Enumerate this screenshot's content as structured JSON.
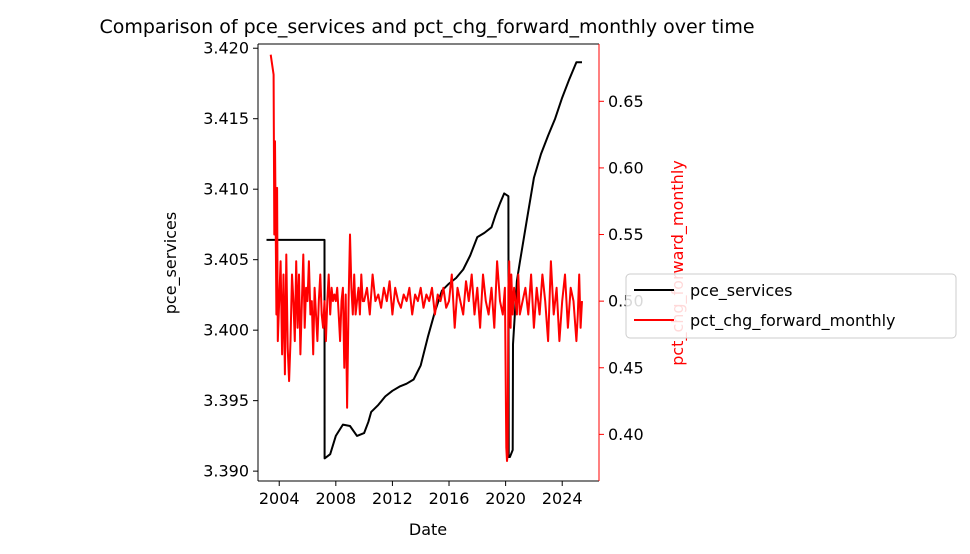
{
  "chart_data": {
    "type": "line",
    "title": "Comparison of pce_services and pct_chg_forward_monthly over time",
    "xlabel": "Date",
    "ylabel_left": "pce_services",
    "ylabel_right": "pct_chg_forward_monthly",
    "x_range": [
      "2002.5",
      "2026.6"
    ],
    "x_ticks": [
      "2004",
      "2008",
      "2012",
      "2016",
      "2020",
      "2024"
    ],
    "ylim_left": [
      3.3893,
      3.4203
    ],
    "yticks_left": [
      "3.390",
      "3.395",
      "3.400",
      "3.405",
      "3.410",
      "3.415",
      "3.420"
    ],
    "ylim_right": [
      0.365,
      0.693
    ],
    "yticks_right": [
      "0.40",
      "0.45",
      "0.50",
      "0.55",
      "0.60",
      "0.65"
    ],
    "grid": false,
    "legend_position": "center-right, outside plot",
    "colors": {
      "pce_services": "#000000",
      "pct_chg_forward_monthly": "#ff0000",
      "right_axis": "#ff0000"
    },
    "series": [
      {
        "name": "pce_services",
        "axis": "left",
        "x": [
          2003.1,
          2007.2,
          2007.21,
          2007.6,
          2008.0,
          2008.5,
          2009.0,
          2009.5,
          2010.0,
          2010.3,
          2010.5,
          2011.0,
          2011.5,
          2012.0,
          2012.5,
          2013.0,
          2013.5,
          2014.0,
          2014.5,
          2015.0,
          2015.5,
          2016.0,
          2016.5,
          2017.0,
          2017.5,
          2018.0,
          2018.5,
          2019.0,
          2019.3,
          2019.6,
          2019.9,
          2020.2,
          2020.22,
          2020.3,
          2020.5,
          2020.52,
          2020.8,
          2021.0,
          2021.5,
          2022.0,
          2022.5,
          2023.0,
          2023.5,
          2024.0,
          2024.5,
          2025.0,
          2025.4
        ],
        "y": [
          3.4064,
          3.4064,
          3.3909,
          3.3912,
          3.3925,
          3.3933,
          3.3932,
          3.3925,
          3.3927,
          3.3935,
          3.3942,
          3.3947,
          3.3953,
          3.3957,
          3.396,
          3.3962,
          3.3965,
          3.3975,
          3.3995,
          3.4013,
          3.4028,
          3.4033,
          3.4037,
          3.4043,
          3.4053,
          3.4066,
          3.4069,
          3.4073,
          3.4082,
          3.409,
          3.4097,
          3.4095,
          3.391,
          3.391,
          3.3915,
          3.399,
          3.4035,
          3.4048,
          3.4078,
          3.4108,
          3.4125,
          3.4138,
          3.415,
          3.4165,
          3.4178,
          3.419,
          3.419
        ]
      },
      {
        "name": "pct_chg_forward_monthly",
        "axis": "right",
        "x": [
          2003.4,
          2003.6,
          2003.65,
          2003.7,
          2003.8,
          2003.85,
          2003.9,
          2004.0,
          2004.1,
          2004.2,
          2004.3,
          2004.4,
          2004.5,
          2004.6,
          2004.7,
          2004.8,
          2004.9,
          2005.0,
          2005.1,
          2005.2,
          2005.3,
          2005.4,
          2005.5,
          2005.6,
          2005.7,
          2005.8,
          2005.9,
          2006.0,
          2006.1,
          2006.2,
          2006.3,
          2006.4,
          2006.5,
          2006.6,
          2006.7,
          2006.8,
          2006.9,
          2007.0,
          2007.1,
          2007.2,
          2007.3,
          2007.4,
          2007.5,
          2007.6,
          2007.7,
          2007.8,
          2007.9,
          2008.0,
          2008.1,
          2008.2,
          2008.3,
          2008.4,
          2008.5,
          2008.6,
          2008.7,
          2008.8,
          2008.9,
          2009.0,
          2009.1,
          2009.2,
          2009.3,
          2009.4,
          2009.5,
          2009.6,
          2009.7,
          2009.8,
          2009.9,
          2010.0,
          2010.2,
          2010.4,
          2010.6,
          2010.8,
          2011.0,
          2011.2,
          2011.4,
          2011.6,
          2011.8,
          2012.0,
          2012.2,
          2012.4,
          2012.6,
          2012.8,
          2013.0,
          2013.2,
          2013.4,
          2013.6,
          2013.8,
          2014.0,
          2014.2,
          2014.4,
          2014.6,
          2014.8,
          2015.0,
          2015.2,
          2015.4,
          2015.6,
          2015.8,
          2016.0,
          2016.2,
          2016.4,
          2016.6,
          2016.8,
          2017.0,
          2017.2,
          2017.4,
          2017.6,
          2017.8,
          2018.0,
          2018.2,
          2018.4,
          2018.6,
          2018.8,
          2019.0,
          2019.2,
          2019.4,
          2019.6,
          2019.8,
          2019.95,
          2020.05,
          2020.1,
          2020.15,
          2020.2,
          2020.25,
          2020.3,
          2020.35,
          2020.4,
          2020.5,
          2020.6,
          2020.7,
          2020.8,
          2020.9,
          2021.0,
          2021.2,
          2021.4,
          2021.6,
          2021.8,
          2022.0,
          2022.2,
          2022.4,
          2022.6,
          2022.8,
          2023.0,
          2023.2,
          2023.4,
          2023.6,
          2023.8,
          2024.0,
          2024.2,
          2024.4,
          2024.6,
          2024.8,
          2025.0,
          2025.1,
          2025.2,
          2025.3,
          2025.4
        ],
        "y": [
          0.685,
          0.67,
          0.55,
          0.62,
          0.49,
          0.585,
          0.47,
          0.5,
          0.53,
          0.46,
          0.52,
          0.445,
          0.535,
          0.465,
          0.44,
          0.47,
          0.52,
          0.5,
          0.47,
          0.53,
          0.48,
          0.52,
          0.46,
          0.5,
          0.535,
          0.48,
          0.51,
          0.5,
          0.53,
          0.49,
          0.5,
          0.46,
          0.51,
          0.49,
          0.47,
          0.5,
          0.52,
          0.49,
          0.48,
          0.5,
          0.47,
          0.5,
          0.52,
          0.49,
          0.51,
          0.5,
          0.505,
          0.5,
          0.51,
          0.49,
          0.47,
          0.5,
          0.51,
          0.45,
          0.505,
          0.42,
          0.5,
          0.55,
          0.51,
          0.49,
          0.52,
          0.49,
          0.5,
          0.51,
          0.49,
          0.52,
          0.5,
          0.5,
          0.51,
          0.49,
          0.52,
          0.5,
          0.505,
          0.495,
          0.51,
          0.5,
          0.515,
          0.49,
          0.51,
          0.5,
          0.495,
          0.505,
          0.5,
          0.51,
          0.49,
          0.505,
          0.5,
          0.51,
          0.495,
          0.505,
          0.5,
          0.51,
          0.49,
          0.505,
          0.5,
          0.51,
          0.495,
          0.5,
          0.52,
          0.48,
          0.51,
          0.5,
          0.49,
          0.515,
          0.5,
          0.52,
          0.49,
          0.51,
          0.48,
          0.52,
          0.5,
          0.49,
          0.51,
          0.48,
          0.53,
          0.5,
          0.49,
          0.51,
          0.39,
          0.38,
          0.385,
          0.51,
          0.53,
          0.5,
          0.48,
          0.52,
          0.49,
          0.51,
          0.5,
          0.49,
          0.52,
          0.49,
          0.5,
          0.51,
          0.49,
          0.52,
          0.48,
          0.51,
          0.49,
          0.52,
          0.5,
          0.47,
          0.53,
          0.49,
          0.51,
          0.47,
          0.5,
          0.52,
          0.48,
          0.51,
          0.5,
          0.47,
          0.49,
          0.52,
          0.48,
          0.5
        ],
        "note": ""
      }
    ]
  }
}
